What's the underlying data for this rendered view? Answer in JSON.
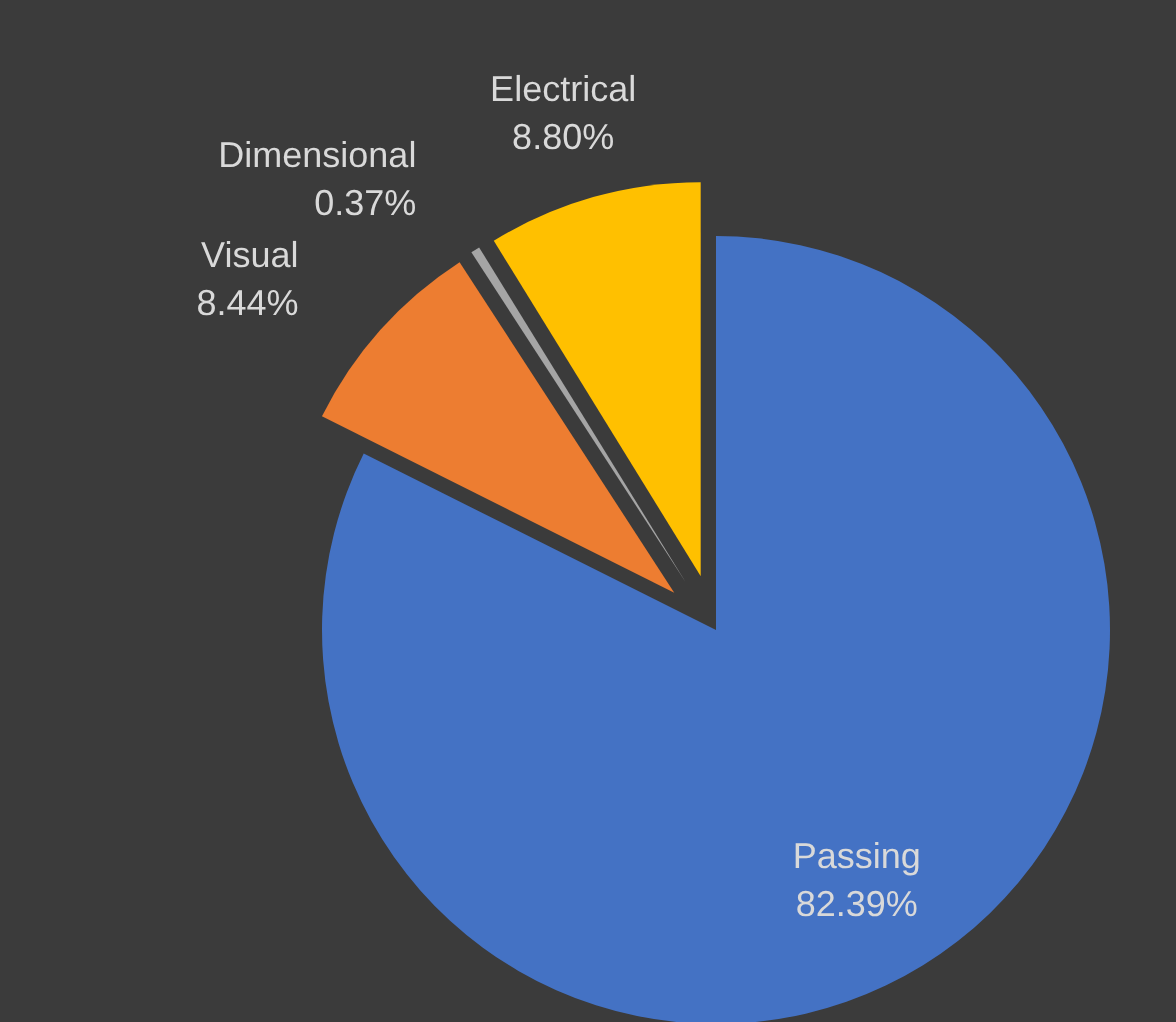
{
  "chart_data": {
    "type": "pie",
    "categories": [
      "Passing",
      "Visual",
      "Dimensional",
      "Electrical"
    ],
    "values": [
      82.39,
      8.44,
      0.37,
      8.8
    ],
    "colors": [
      "#4472c4",
      "#ed7d31",
      "#a5a5a5",
      "#ffc000"
    ],
    "value_labels": [
      "82.39%",
      "8.44%",
      "0.37%",
      "8.80%"
    ]
  }
}
